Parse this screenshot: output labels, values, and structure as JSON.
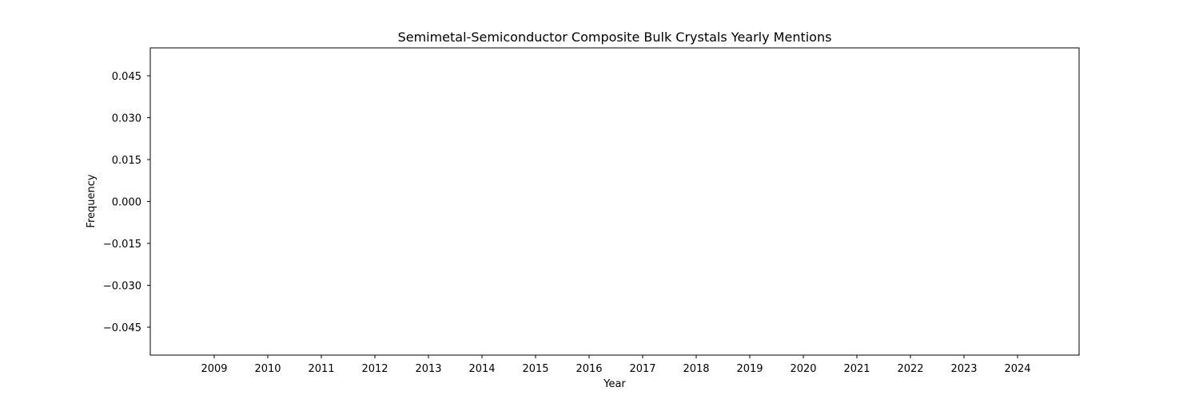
{
  "chart_data": {
    "type": "bar",
    "title": "Semimetal-Semiconductor Composite Bulk Crystals Yearly Mentions",
    "xlabel": "Year",
    "ylabel": "Frequency",
    "categories": [
      "2009",
      "2010",
      "2011",
      "2012",
      "2013",
      "2014",
      "2015",
      "2016",
      "2017",
      "2018",
      "2019",
      "2020",
      "2021",
      "2022",
      "2023",
      "2024"
    ],
    "values": [
      0,
      0,
      0,
      0,
      0,
      0,
      0,
      0,
      0,
      0,
      0,
      0,
      0,
      0,
      0,
      0
    ],
    "ylim": [
      -0.055,
      0.055
    ],
    "yticks": [
      0.045,
      0.03,
      0.015,
      0.0,
      -0.015,
      -0.03,
      -0.045
    ],
    "ytick_labels": [
      "0.045",
      "0.030",
      "0.015",
      "0.000",
      "−0.015",
      "−0.030",
      "−0.045"
    ],
    "grid": false,
    "legend": "none",
    "colors": {
      "bar": "#1f77b4",
      "axes": "#000000",
      "background": "#ffffff"
    }
  }
}
